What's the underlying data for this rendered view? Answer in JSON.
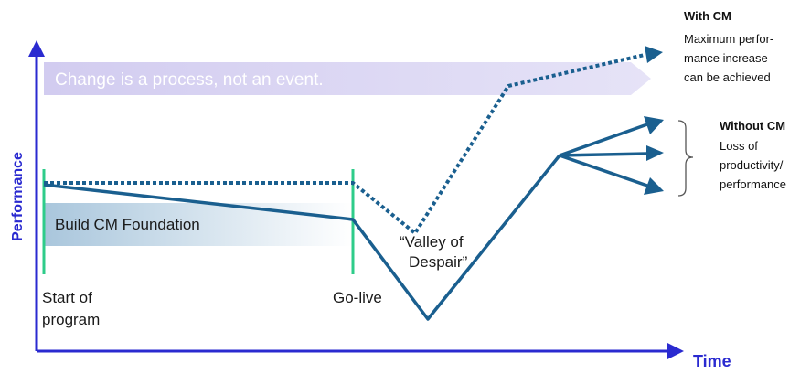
{
  "axes": {
    "y_label": "Performance",
    "x_label": "Time"
  },
  "banner": {
    "text": "Change is a process, not an event."
  },
  "foundation": {
    "label": "Build CM Foundation"
  },
  "markers": {
    "start": [
      "Start of",
      "program"
    ],
    "golive": "Go-live"
  },
  "valley": {
    "label": [
      "“Valley of",
      "Despair”"
    ]
  },
  "with_cm": {
    "title": "With CM",
    "lines": [
      "Maximum perfor-",
      "mance increase",
      "can be achieved"
    ]
  },
  "without_cm": {
    "title": "Without CM",
    "lines": [
      "Loss of",
      "productivity/",
      "performance"
    ]
  },
  "colors": {
    "axis": "#2a2ad0",
    "line": "#1a5f8f",
    "marker": "#2ecc8a",
    "banner": "#dcd8f2",
    "foundation_start": "#a9c6dc",
    "foundation_end": "#ffffff"
  }
}
